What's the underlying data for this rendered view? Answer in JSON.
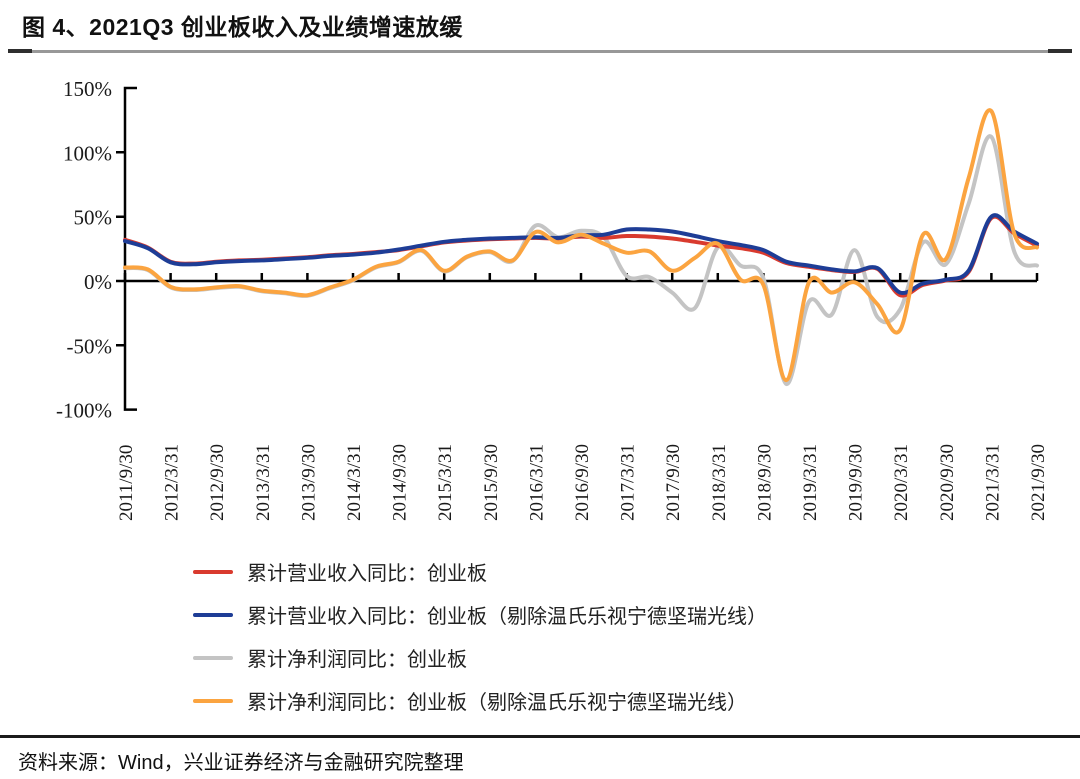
{
  "figure": {
    "title": "图 4、2021Q3 创业板收入及业绩增速放缓",
    "source": "资料来源：Wind，兴业证券经济与金融研究院整理"
  },
  "colors": {
    "red": "#d93a2e",
    "blue": "#1e3d96",
    "gray": "#c4c4c4",
    "orange": "#fba440",
    "axis": "#000000",
    "tick_text": "#1a1a1a"
  },
  "chart_data": {
    "type": "line",
    "title": "",
    "xlabel": "",
    "ylabel": "",
    "grid": false,
    "legend_position": "bottom-left",
    "ylim": [
      -100,
      150
    ],
    "y_tick_values": [
      150,
      100,
      50,
      0,
      -50,
      -100
    ],
    "y_tick_labels": [
      "150%",
      "100%",
      "50%",
      "0%",
      "-50%",
      "-100%"
    ],
    "x_tick_labels": [
      "2011/9/30",
      "2012/3/31",
      "2012/9/30",
      "2013/3/31",
      "2013/9/30",
      "2014/3/31",
      "2014/9/30",
      "2015/3/31",
      "2015/9/30",
      "2016/3/31",
      "2016/9/30",
      "2017/3/31",
      "2017/9/30",
      "2018/3/31",
      "2018/9/30",
      "2019/3/31",
      "2019/9/30",
      "2020/3/31",
      "2020/9/30",
      "2021/3/31",
      "2021/9/30"
    ],
    "x": [
      "2011/9/30",
      "2011/12/31",
      "2012/3/31",
      "2012/6/30",
      "2012/9/30",
      "2012/12/31",
      "2013/3/31",
      "2013/6/30",
      "2013/9/30",
      "2013/12/31",
      "2014/3/31",
      "2014/6/30",
      "2014/9/30",
      "2014/12/31",
      "2015/3/31",
      "2015/6/30",
      "2015/9/30",
      "2015/12/31",
      "2016/3/31",
      "2016/6/30",
      "2016/9/30",
      "2016/12/31",
      "2017/3/31",
      "2017/6/30",
      "2017/9/30",
      "2017/12/31",
      "2018/3/31",
      "2018/6/30",
      "2018/9/30",
      "2018/12/31",
      "2019/3/31",
      "2019/6/30",
      "2019/9/30",
      "2019/12/31",
      "2020/3/31",
      "2020/6/30",
      "2020/9/30",
      "2020/12/31",
      "2021/3/31",
      "2021/6/30",
      "2021/9/30"
    ],
    "series": [
      {
        "name": "累计营业收入同比：创业板",
        "color_key": "red",
        "values": [
          32,
          26,
          15,
          13.5,
          15,
          16,
          16.5,
          17.5,
          18.5,
          20,
          21,
          22.5,
          24,
          27,
          30,
          31.5,
          32.5,
          33,
          33.5,
          33,
          34.5,
          33.5,
          35,
          34.5,
          33,
          30.5,
          27.5,
          25.5,
          22,
          14,
          11,
          8.5,
          7,
          9.5,
          -11,
          -3,
          0.5,
          7,
          49,
          37,
          27.5
        ]
      },
      {
        "name": "累计营业收入同比：创业板（剔除温氏乐视宁德坚瑞光线）",
        "color_key": "blue",
        "values": [
          31,
          25.5,
          14.5,
          13,
          14.5,
          15.5,
          16,
          17,
          18,
          19.5,
          20.5,
          22,
          24.5,
          27.5,
          30.5,
          32,
          33,
          33.5,
          34,
          33.5,
          35.5,
          36,
          40,
          40,
          38.5,
          35,
          31,
          28,
          24,
          15,
          12,
          9,
          7.5,
          10,
          -9,
          -2,
          1,
          8,
          50,
          38.5,
          29
        ]
      },
      {
        "name": "累计净利润同比：创业板",
        "color_key": "gray",
        "values": [
          10,
          8.5,
          -5,
          -7,
          -5.5,
          -4.5,
          -8,
          -9.5,
          -11.5,
          -5.5,
          0.5,
          10.5,
          14.5,
          23.5,
          7.5,
          18.5,
          22.5,
          15.5,
          43,
          34,
          39,
          34,
          4,
          3,
          -9,
          -21,
          26,
          12,
          2,
          -80,
          -16,
          -26,
          24,
          -28,
          -22,
          30,
          13,
          60,
          112,
          23,
          12
        ]
      },
      {
        "name": "累计净利润同比：创业板（剔除温氏乐视宁德坚瑞光线）",
        "color_key": "orange",
        "values": [
          10.5,
          9,
          -4.5,
          -6.5,
          -5,
          -4,
          -7.5,
          -9,
          -11,
          -5,
          1,
          11,
          15,
          24,
          8,
          19,
          23,
          16,
          38,
          30,
          36,
          29,
          22,
          23,
          8,
          18,
          29,
          1,
          -3,
          -77,
          -1,
          -9,
          -1,
          -18,
          -38,
          36,
          17,
          80,
          132,
          37,
          26
        ]
      }
    ]
  }
}
